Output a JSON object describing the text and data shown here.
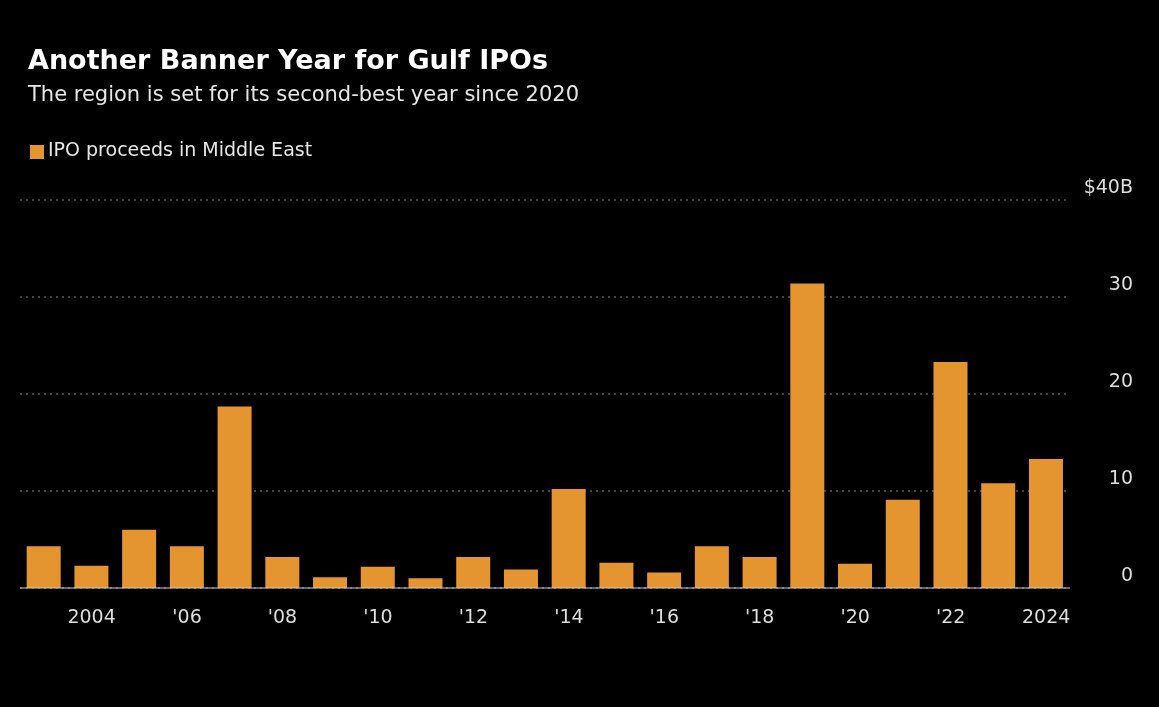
{
  "chart_data": {
    "type": "bar",
    "title": "Another Banner Year for Gulf IPOs",
    "subtitle": "The region is set for its second-best year since 2020",
    "categories": [
      null,
      "2004",
      null,
      "'06",
      null,
      "'08",
      null,
      "'10",
      null,
      "'12",
      null,
      "'14",
      null,
      "'16",
      null,
      "'18",
      null,
      "'20",
      null,
      "'22",
      null,
      "2024"
    ],
    "series": [
      {
        "name": "IPO proceeds in Middle East",
        "color": "#e5952f",
        "values": [
          4.3,
          2.3,
          6.0,
          4.3,
          18.7,
          3.2,
          1.1,
          2.2,
          1.0,
          3.2,
          1.9,
          10.2,
          2.6,
          1.6,
          4.3,
          3.2,
          31.4,
          2.5,
          9.1,
          23.3,
          10.8,
          13.3
        ]
      }
    ],
    "ylim": [
      0,
      40
    ],
    "yticks": [
      0,
      10,
      20,
      30,
      {
        "value": 40,
        "label": "$40B"
      }
    ],
    "grid": "y",
    "legend": "top left"
  }
}
